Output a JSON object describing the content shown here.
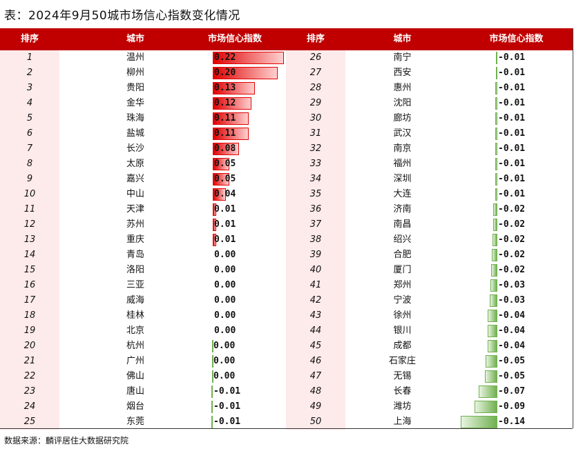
{
  "title": "表：2024年9月50城市场信心指数变化情况",
  "source": "数据来源：麟评居住大数据研究院",
  "headers": {
    "rank": "排序",
    "city": "城市",
    "index": "市场信心指数",
    "rank2": "排序",
    "city2": "城市",
    "index2": "市场信心指数"
  },
  "colors": {
    "header": "#c00000",
    "positive": "#e00000",
    "negative": "#70b050",
    "rank_bg": "#fdeaea"
  },
  "chart_data": {
    "type": "table",
    "columns": [
      "排序",
      "城市",
      "市场信心指数"
    ],
    "rows": [
      {
        "rank": "1",
        "city": "温州",
        "value": 0.22,
        "label": "0.22"
      },
      {
        "rank": "2",
        "city": "柳州",
        "value": 0.2,
        "label": "0.20"
      },
      {
        "rank": "3",
        "city": "贵阳",
        "value": 0.13,
        "label": "0.13"
      },
      {
        "rank": "4",
        "city": "金华",
        "value": 0.12,
        "label": "0.12"
      },
      {
        "rank": "5",
        "city": "珠海",
        "value": 0.11,
        "label": "0.11"
      },
      {
        "rank": "6",
        "city": "盐城",
        "value": 0.11,
        "label": "0.11"
      },
      {
        "rank": "7",
        "city": "长沙",
        "value": 0.08,
        "label": "0.08"
      },
      {
        "rank": "8",
        "city": "太原",
        "value": 0.05,
        "label": "0.05"
      },
      {
        "rank": "9",
        "city": "嘉兴",
        "value": 0.05,
        "label": "0.05"
      },
      {
        "rank": "10",
        "city": "中山",
        "value": 0.04,
        "label": "0.04"
      },
      {
        "rank": "11",
        "city": "天津",
        "value": 0.01,
        "label": "0.01"
      },
      {
        "rank": "12",
        "city": "苏州",
        "value": 0.01,
        "label": "0.01"
      },
      {
        "rank": "13",
        "city": "重庆",
        "value": 0.01,
        "label": "0.01"
      },
      {
        "rank": "14",
        "city": "青岛",
        "value": 0.0,
        "label": "0.00"
      },
      {
        "rank": "15",
        "city": "洛阳",
        "value": 0.0,
        "label": "0.00"
      },
      {
        "rank": "16",
        "city": "三亚",
        "value": 0.0,
        "label": "0.00"
      },
      {
        "rank": "17",
        "city": "威海",
        "value": 0.0,
        "label": "0.00"
      },
      {
        "rank": "18",
        "city": "桂林",
        "value": 0.0,
        "label": "0.00"
      },
      {
        "rank": "19",
        "city": "北京",
        "value": 0.0,
        "label": "0.00"
      },
      {
        "rank": "20",
        "city": "杭州",
        "value": -0.001,
        "label": "0.00"
      },
      {
        "rank": "21",
        "city": "广州",
        "value": -0.002,
        "label": "0.00"
      },
      {
        "rank": "22",
        "city": "佛山",
        "value": -0.003,
        "label": "0.00"
      },
      {
        "rank": "23",
        "city": "唐山",
        "value": -0.005,
        "label": "-0.01"
      },
      {
        "rank": "24",
        "city": "烟台",
        "value": -0.006,
        "label": "-0.01"
      },
      {
        "rank": "25",
        "city": "东莞",
        "value": -0.006,
        "label": "-0.01"
      },
      {
        "rank": "26",
        "city": "南宁",
        "value": -0.006,
        "label": "-0.01"
      },
      {
        "rank": "27",
        "city": "西安",
        "value": -0.006,
        "label": "-0.01"
      },
      {
        "rank": "28",
        "city": "惠州",
        "value": -0.007,
        "label": "-0.01"
      },
      {
        "rank": "29",
        "city": "沈阳",
        "value": -0.007,
        "label": "-0.01"
      },
      {
        "rank": "30",
        "city": "廊坊",
        "value": -0.007,
        "label": "-0.01"
      },
      {
        "rank": "31",
        "city": "武汉",
        "value": -0.007,
        "label": "-0.01"
      },
      {
        "rank": "32",
        "city": "南京",
        "value": -0.007,
        "label": "-0.01"
      },
      {
        "rank": "33",
        "city": "福州",
        "value": -0.008,
        "label": "-0.01"
      },
      {
        "rank": "34",
        "city": "深圳",
        "value": -0.009,
        "label": "-0.01"
      },
      {
        "rank": "35",
        "city": "大连",
        "value": -0.009,
        "label": "-0.01"
      },
      {
        "rank": "36",
        "city": "济南",
        "value": -0.015,
        "label": "-0.02"
      },
      {
        "rank": "37",
        "city": "南昌",
        "value": -0.016,
        "label": "-0.02"
      },
      {
        "rank": "38",
        "city": "绍兴",
        "value": -0.018,
        "label": "-0.02"
      },
      {
        "rank": "39",
        "city": "合肥",
        "value": -0.022,
        "label": "-0.02"
      },
      {
        "rank": "40",
        "city": "厦门",
        "value": -0.024,
        "label": "-0.02"
      },
      {
        "rank": "41",
        "city": "郑州",
        "value": -0.026,
        "label": "-0.03"
      },
      {
        "rank": "42",
        "city": "宁波",
        "value": -0.028,
        "label": "-0.03"
      },
      {
        "rank": "43",
        "city": "徐州",
        "value": -0.036,
        "label": "-0.04"
      },
      {
        "rank": "44",
        "city": "银川",
        "value": -0.036,
        "label": "-0.04"
      },
      {
        "rank": "45",
        "city": "成都",
        "value": -0.038,
        "label": "-0.04"
      },
      {
        "rank": "46",
        "city": "石家庄",
        "value": -0.045,
        "label": "-0.05"
      },
      {
        "rank": "47",
        "city": "无锡",
        "value": -0.047,
        "label": "-0.05"
      },
      {
        "rank": "48",
        "city": "长春",
        "value": -0.072,
        "label": "-0.07"
      },
      {
        "rank": "49",
        "city": "潍坊",
        "value": -0.088,
        "label": "-0.09"
      },
      {
        "rank": "50",
        "city": "上海",
        "value": -0.14,
        "label": "-0.14"
      }
    ]
  }
}
